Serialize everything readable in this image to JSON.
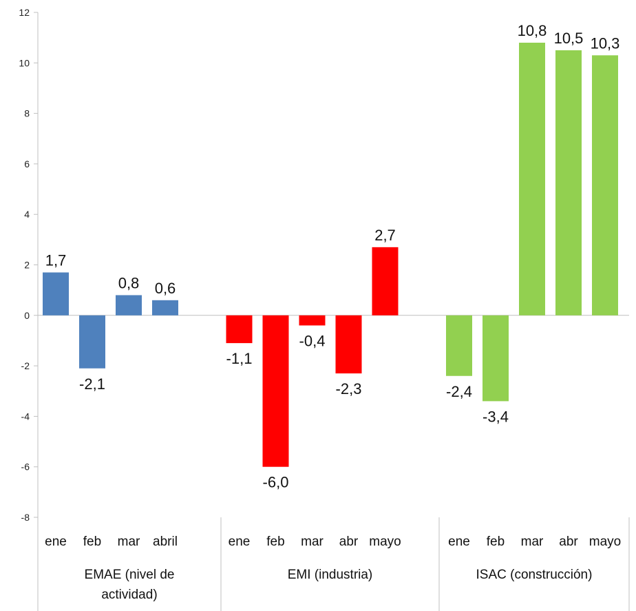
{
  "chart_data": {
    "type": "bar",
    "ylim": [
      -8,
      12
    ],
    "yticks": [
      12,
      10,
      8,
      6,
      4,
      2,
      0,
      -2,
      -4,
      -6,
      -8
    ],
    "grid": false,
    "groups": [
      {
        "label_lines": [
          "EMAE (nivel de",
          "actividad)"
        ],
        "color": "#4F81BD",
        "categories": [
          "ene",
          "feb",
          "mar",
          "abril"
        ],
        "values": [
          1.7,
          -2.1,
          0.8,
          0.6
        ],
        "labels": [
          "1,7",
          "-2,1",
          "0,8",
          "0,6"
        ]
      },
      {
        "label_lines": [
          "EMI (industria)"
        ],
        "color": "#FF0000",
        "categories": [
          "ene",
          "feb",
          "mar",
          "abr",
          "mayo"
        ],
        "values": [
          -1.1,
          -6.0,
          -0.4,
          -2.3,
          2.7
        ],
        "labels": [
          "-1,1",
          "-6,0",
          "-0,4",
          "-2,3",
          "2,7"
        ]
      },
      {
        "label_lines": [
          "ISAC (construcción)"
        ],
        "color": "#92D050",
        "categories": [
          "ene",
          "feb",
          "mar",
          "abr",
          "mayo"
        ],
        "values": [
          -2.4,
          -3.4,
          10.8,
          10.5,
          10.3
        ],
        "labels": [
          "-2,4",
          "-3,4",
          "10,8",
          "10,5",
          "10,3"
        ]
      }
    ]
  }
}
